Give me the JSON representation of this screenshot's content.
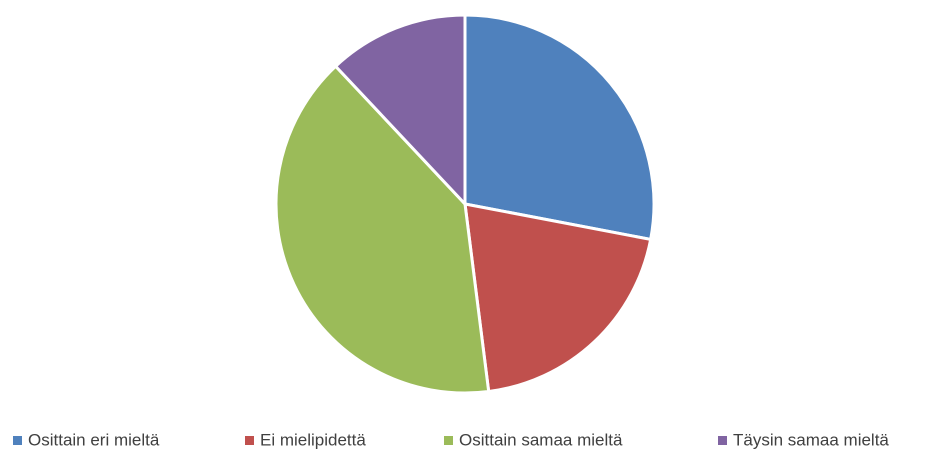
{
  "chart_data": {
    "type": "pie",
    "categories": [
      "Osittain eri mieltä",
      "Ei mielipidettä",
      "Osittain samaa mieltä",
      "Täysin samaa mieltä"
    ],
    "values": [
      28,
      20,
      40,
      12
    ],
    "colors": [
      "#4f81bd",
      "#c0504d",
      "#9bbb59",
      "#8064a2"
    ],
    "legend": "bottom"
  }
}
